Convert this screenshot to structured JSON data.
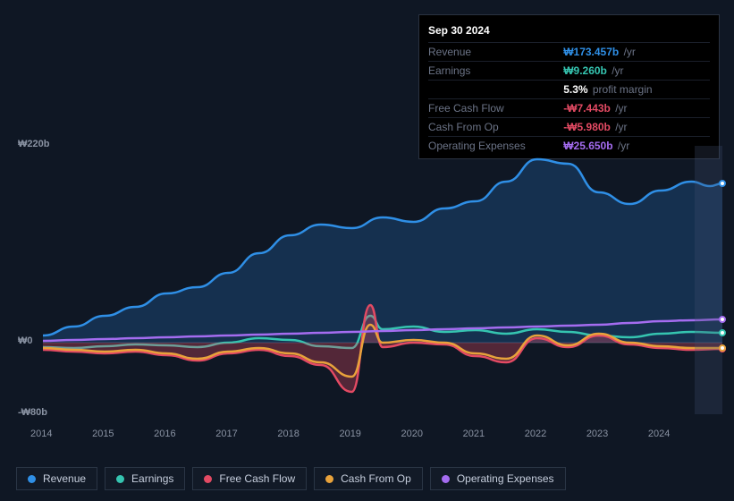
{
  "tooltip": {
    "date": "Sep 30 2024",
    "rows": [
      {
        "label": "Revenue",
        "value": "₩173.457b",
        "unit": "/yr",
        "color": "#2f8fe6"
      },
      {
        "label": "Earnings",
        "value": "₩9.260b",
        "unit": "/yr",
        "color": "#35c4b0"
      },
      {
        "label": "",
        "value": "5.3%",
        "unit": "profit margin",
        "color": "#ffffff"
      },
      {
        "label": "Free Cash Flow",
        "value": "-₩7.443b",
        "unit": "/yr",
        "color": "#e34a63"
      },
      {
        "label": "Cash From Op",
        "value": "-₩5.980b",
        "unit": "/yr",
        "color": "#e34a63"
      },
      {
        "label": "Operating Expenses",
        "value": "₩25.650b",
        "unit": "/yr",
        "color": "#a46cf0"
      }
    ]
  },
  "chart": {
    "type": "line-area",
    "background_color": "#0f1724",
    "xlim": [
      2014,
      2025
    ],
    "ylim": [
      -80,
      220
    ],
    "y_ticks": [
      {
        "v": 220,
        "label": "₩220b"
      },
      {
        "v": 0,
        "label": "₩0"
      },
      {
        "v": -80,
        "label": "-₩80b"
      }
    ],
    "x_ticks": [
      2014,
      2015,
      2016,
      2017,
      2018,
      2019,
      2020,
      2021,
      2022,
      2023,
      2024
    ],
    "highlight_band": {
      "from": 2024.55,
      "to": 2025
    },
    "line_width": 2.5,
    "series": [
      {
        "name": "Revenue",
        "color": "#2f8fe6",
        "fill": "rgba(47,143,230,0.22)",
        "fill_to": 0,
        "data": [
          [
            2014,
            8
          ],
          [
            2014.5,
            18
          ],
          [
            2015,
            30
          ],
          [
            2015.5,
            40
          ],
          [
            2016,
            55
          ],
          [
            2016.5,
            62
          ],
          [
            2017,
            78
          ],
          [
            2017.5,
            100
          ],
          [
            2018,
            120
          ],
          [
            2018.5,
            132
          ],
          [
            2019,
            128
          ],
          [
            2019.5,
            140
          ],
          [
            2020,
            135
          ],
          [
            2020.5,
            150
          ],
          [
            2021,
            158
          ],
          [
            2021.5,
            180
          ],
          [
            2022,
            205
          ],
          [
            2022.5,
            200
          ],
          [
            2023,
            168
          ],
          [
            2023.5,
            155
          ],
          [
            2024,
            170
          ],
          [
            2024.5,
            180
          ],
          [
            2024.8,
            175
          ],
          [
            2025,
            178
          ]
        ],
        "marker_at": 2025
      },
      {
        "name": "Earnings",
        "color": "#35c4b0",
        "data": [
          [
            2014,
            -5
          ],
          [
            2014.5,
            -6
          ],
          [
            2015,
            -4
          ],
          [
            2015.5,
            -2
          ],
          [
            2016,
            -3
          ],
          [
            2016.5,
            -5
          ],
          [
            2017,
            0
          ],
          [
            2017.5,
            5
          ],
          [
            2018,
            3
          ],
          [
            2018.5,
            -4
          ],
          [
            2019,
            -6
          ],
          [
            2019.3,
            30
          ],
          [
            2019.5,
            15
          ],
          [
            2020,
            18
          ],
          [
            2020.5,
            12
          ],
          [
            2021,
            14
          ],
          [
            2021.5,
            10
          ],
          [
            2022,
            15
          ],
          [
            2022.5,
            12
          ],
          [
            2023,
            8
          ],
          [
            2023.5,
            6
          ],
          [
            2024,
            10
          ],
          [
            2024.5,
            12
          ],
          [
            2025,
            11
          ]
        ],
        "marker_at": 2025
      },
      {
        "name": "Free Cash Flow",
        "color": "#e34a63",
        "fill": "rgba(227,74,99,0.32)",
        "fill_to": 0,
        "data": [
          [
            2014,
            -8
          ],
          [
            2014.5,
            -10
          ],
          [
            2015,
            -12
          ],
          [
            2015.5,
            -10
          ],
          [
            2016,
            -14
          ],
          [
            2016.5,
            -20
          ],
          [
            2017,
            -12
          ],
          [
            2017.5,
            -8
          ],
          [
            2018,
            -15
          ],
          [
            2018.5,
            -25
          ],
          [
            2019,
            -55
          ],
          [
            2019.3,
            42
          ],
          [
            2019.5,
            -5
          ],
          [
            2020,
            0
          ],
          [
            2020.5,
            -2
          ],
          [
            2021,
            -15
          ],
          [
            2021.5,
            -22
          ],
          [
            2022,
            5
          ],
          [
            2022.5,
            -5
          ],
          [
            2023,
            8
          ],
          [
            2023.5,
            -2
          ],
          [
            2024,
            -6
          ],
          [
            2024.5,
            -8
          ],
          [
            2025,
            -7
          ]
        ],
        "marker_at": 2025
      },
      {
        "name": "Cash From Op",
        "color": "#e8a23b",
        "data": [
          [
            2014,
            -6
          ],
          [
            2014.5,
            -8
          ],
          [
            2015,
            -10
          ],
          [
            2015.5,
            -8
          ],
          [
            2016,
            -12
          ],
          [
            2016.5,
            -18
          ],
          [
            2017,
            -10
          ],
          [
            2017.5,
            -6
          ],
          [
            2018,
            -12
          ],
          [
            2018.5,
            -22
          ],
          [
            2019,
            -38
          ],
          [
            2019.3,
            20
          ],
          [
            2019.5,
            0
          ],
          [
            2020,
            3
          ],
          [
            2020.5,
            0
          ],
          [
            2021,
            -12
          ],
          [
            2021.5,
            -18
          ],
          [
            2022,
            8
          ],
          [
            2022.5,
            -3
          ],
          [
            2023,
            10
          ],
          [
            2023.5,
            0
          ],
          [
            2024,
            -4
          ],
          [
            2024.5,
            -6
          ],
          [
            2025,
            -6
          ]
        ],
        "marker_at": 2025
      },
      {
        "name": "Operating Expenses",
        "color": "#a46cf0",
        "data": [
          [
            2014,
            2
          ],
          [
            2014.5,
            3
          ],
          [
            2015,
            4
          ],
          [
            2015.5,
            5
          ],
          [
            2016,
            6
          ],
          [
            2016.5,
            7
          ],
          [
            2017,
            8
          ],
          [
            2017.5,
            9
          ],
          [
            2018,
            10
          ],
          [
            2018.5,
            11
          ],
          [
            2019,
            12
          ],
          [
            2019.5,
            13
          ],
          [
            2020,
            14
          ],
          [
            2020.5,
            15
          ],
          [
            2021,
            16
          ],
          [
            2021.5,
            17
          ],
          [
            2022,
            18
          ],
          [
            2022.5,
            19
          ],
          [
            2023,
            20
          ],
          [
            2023.5,
            22
          ],
          [
            2024,
            24
          ],
          [
            2024.5,
            25
          ],
          [
            2025,
            26
          ]
        ],
        "marker_at": 2025
      }
    ],
    "legend": [
      {
        "label": "Revenue",
        "color": "#2f8fe6"
      },
      {
        "label": "Earnings",
        "color": "#35c4b0"
      },
      {
        "label": "Free Cash Flow",
        "color": "#e34a63"
      },
      {
        "label": "Cash From Op",
        "color": "#e8a23b"
      },
      {
        "label": "Operating Expenses",
        "color": "#a46cf0"
      }
    ]
  }
}
